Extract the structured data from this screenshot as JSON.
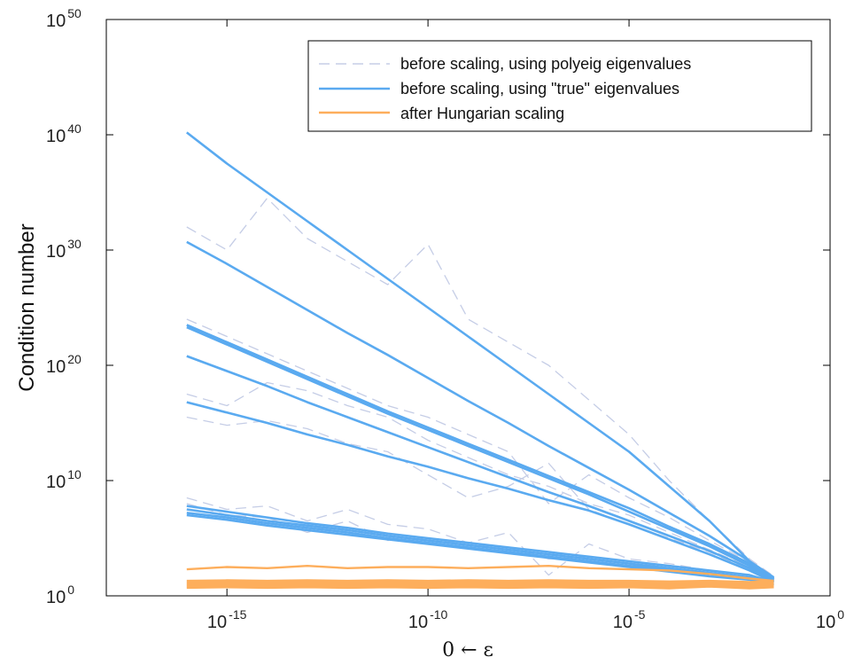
{
  "chart_data": {
    "type": "line",
    "xscale": "log",
    "yscale": "log",
    "xlim": [
      1e-18,
      1
    ],
    "ylim": [
      1,
      1e+50
    ],
    "xticks": [
      {
        "base": "10",
        "exp": "-15",
        "value": 1e-15
      },
      {
        "base": "10",
        "exp": "-10",
        "value": 1e-10
      },
      {
        "base": "10",
        "exp": "-5",
        "value": 1e-05
      },
      {
        "base": "10",
        "exp": "0",
        "value": 1
      }
    ],
    "yticks": [
      {
        "base": "10",
        "exp": "0",
        "value": 1
      },
      {
        "base": "10",
        "exp": "10",
        "value": 10000000000.0
      },
      {
        "base": "10",
        "exp": "20",
        "value": 1e+20
      },
      {
        "base": "10",
        "exp": "30",
        "value": 1e+30
      },
      {
        "base": "10",
        "exp": "40",
        "value": 1e+40
      },
      {
        "base": "10",
        "exp": "50",
        "value": 1e+50
      }
    ],
    "xlabel": "0 ← ε",
    "ylabel": "Condition number",
    "legend_position": "top-right",
    "legend": [
      {
        "label": "before scaling, using polyeig eigenvalues",
        "color": "#c5cde6",
        "style": "dashed"
      },
      {
        "label": "before scaling, using \"true\" eigenvalues",
        "color": "#5aaaf0",
        "style": "solid"
      },
      {
        "label": "after Hungarian scaling",
        "color": "#fdae5c",
        "style": "solid"
      }
    ],
    "x_exponents": [
      -16,
      -15,
      -14,
      -13,
      -12,
      -11,
      -10,
      -9,
      -8,
      -7,
      -6,
      -5,
      -4,
      -3,
      -2,
      -1.4
    ],
    "series": [
      {
        "group": "true",
        "log10_y": [
          40.2,
          37.5,
          35,
          32.5,
          30,
          27.5,
          25,
          22.5,
          20,
          17.5,
          15,
          12.5,
          9.5,
          6.5,
          3,
          1.6
        ]
      },
      {
        "group": "true",
        "log10_y": [
          30.7,
          28.8,
          26.8,
          24.8,
          22.8,
          20.9,
          18.9,
          16.9,
          15,
          13,
          11.1,
          9.2,
          7.2,
          5.2,
          3,
          1.4
        ]
      },
      {
        "group": "true",
        "log10_y": [
          23.5,
          22,
          20.5,
          19,
          17.5,
          16,
          14.6,
          13.2,
          11.8,
          10.4,
          9,
          7.6,
          6,
          4.5,
          2.8,
          1.5
        ]
      },
      {
        "group": "true",
        "log10_y": [
          23.3,
          21.8,
          20.3,
          18.8,
          17.3,
          15.8,
          14.4,
          13,
          11.6,
          10.2,
          8.8,
          7.3,
          5.8,
          4.3,
          2.6,
          1.4
        ]
      },
      {
        "group": "true",
        "log10_y": [
          20.8,
          19.5,
          18.2,
          16.8,
          15.5,
          14.2,
          12.9,
          11.6,
          10.3,
          9,
          7.8,
          6.5,
          5.2,
          3.9,
          2.4,
          1.3
        ]
      },
      {
        "group": "true",
        "log10_y": [
          16.8,
          15.9,
          15,
          14,
          13.1,
          12.1,
          11.2,
          10.2,
          9.3,
          8.3,
          7.4,
          6.2,
          4.9,
          3.6,
          2.2,
          1.2
        ]
      },
      {
        "group": "true",
        "log10_y": [
          7.8,
          7.3,
          6.8,
          6.3,
          5.9,
          5.4,
          5,
          4.6,
          4.2,
          3.8,
          3.4,
          3,
          2.6,
          2.2,
          1.8,
          1.2
        ]
      },
      {
        "group": "true",
        "log10_y": [
          7.5,
          7,
          6.5,
          6.1,
          5.7,
          5.2,
          4.8,
          4.4,
          4,
          3.6,
          3.2,
          2.8,
          2.4,
          2,
          1.6,
          1.1
        ]
      },
      {
        "group": "true",
        "log10_y": [
          7.2,
          6.8,
          6.3,
          5.9,
          5.5,
          5,
          4.6,
          4.2,
          3.8,
          3.4,
          3,
          2.6,
          2.3,
          1.9,
          1.5,
          1
        ]
      },
      {
        "group": "true",
        "log10_y": [
          7,
          6.6,
          6.1,
          5.7,
          5.3,
          4.9,
          4.5,
          4.1,
          3.7,
          3.3,
          2.9,
          2.5,
          2.1,
          1.7,
          1.4,
          0.9
        ]
      },
      {
        "group": "polyeig",
        "log10_y": [
          32,
          30,
          34.5,
          31,
          29,
          27,
          30.5,
          24,
          22,
          20,
          17,
          14,
          10,
          6.5,
          3.2,
          1.7
        ]
      },
      {
        "group": "polyeig",
        "log10_y": [
          24,
          22.5,
          21,
          19.5,
          18,
          16.5,
          15.5,
          14,
          12.5,
          8,
          10.5,
          8.5,
          6.8,
          4.8,
          2.9,
          1.5
        ]
      },
      {
        "group": "polyeig",
        "log10_y": [
          17.5,
          16.5,
          18.5,
          17.8,
          16.5,
          15.5,
          13.5,
          12,
          10.5,
          9.5,
          8,
          7,
          5.5,
          4,
          2.5,
          1.4
        ]
      },
      {
        "group": "polyeig",
        "log10_y": [
          15.5,
          14.8,
          15.2,
          14.5,
          13.2,
          12.5,
          10.5,
          8.5,
          9.5,
          11.5,
          7.5,
          6.2,
          5,
          3.8,
          2.3,
          1.3
        ]
      },
      {
        "group": "polyeig",
        "log10_y": [
          8.5,
          7.5,
          7.8,
          6.5,
          7.5,
          6.2,
          5.8,
          4.6,
          5.5,
          1.8,
          4.5,
          3.2,
          2.8,
          2.2,
          1.8,
          1.2
        ]
      },
      {
        "group": "polyeig",
        "log10_y": [
          8,
          7,
          6.8,
          5.5,
          6.5,
          4.8,
          5,
          4.4,
          4.2,
          3.2,
          3.4,
          3,
          2.4,
          2,
          1.6,
          1.1
        ]
      },
      {
        "group": "hungarian",
        "log10_y": [
          2.3,
          2.5,
          2.4,
          2.6,
          2.4,
          2.5,
          2.5,
          2.4,
          2.5,
          2.6,
          2.4,
          2.3,
          2.2,
          1.9,
          1.5,
          1.3
        ]
      },
      {
        "group": "hungarian",
        "log10_y": [
          1.3,
          1.35,
          1.3,
          1.35,
          1.3,
          1.35,
          1.3,
          1.35,
          1.3,
          1.35,
          1.3,
          1.3,
          1.25,
          1.3,
          1.2,
          1.3
        ]
      },
      {
        "group": "hungarian",
        "log10_y": [
          1.15,
          1.2,
          1.15,
          1.2,
          1.15,
          1.2,
          1.15,
          1.2,
          1.15,
          1.2,
          1.15,
          1.2,
          1.1,
          1.2,
          1.1,
          1.2
        ]
      },
      {
        "group": "hungarian",
        "log10_y": [
          1,
          1.05,
          1,
          1.05,
          1,
          1.05,
          1,
          1.05,
          1,
          1.05,
          1,
          1.05,
          0.95,
          1.1,
          0.95,
          1.05
        ]
      },
      {
        "group": "hungarian",
        "log10_y": [
          0.85,
          0.9,
          0.85,
          0.9,
          0.85,
          0.9,
          0.85,
          0.9,
          0.85,
          0.9,
          0.85,
          0.9,
          0.8,
          0.95,
          0.8,
          0.9
        ]
      },
      {
        "group": "hungarian",
        "log10_y": [
          0.7,
          0.75,
          0.7,
          0.75,
          0.7,
          0.75,
          0.7,
          0.75,
          0.7,
          0.75,
          0.7,
          0.75,
          0.65,
          0.8,
          0.65,
          0.75
        ]
      }
    ]
  }
}
